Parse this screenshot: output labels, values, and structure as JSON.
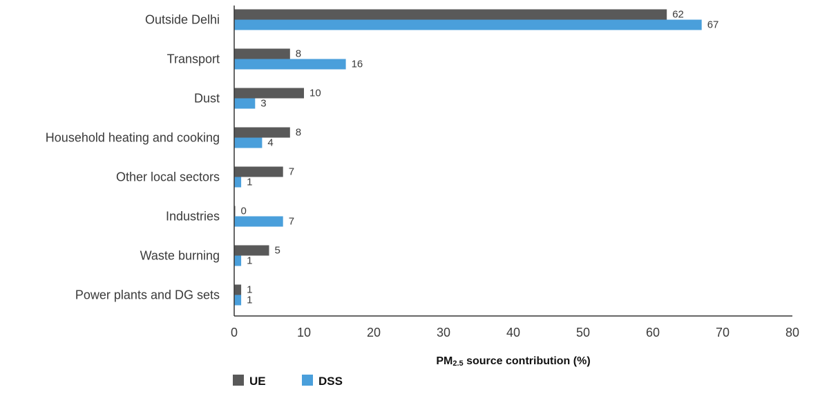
{
  "chart_data": {
    "type": "bar",
    "orientation": "horizontal",
    "categories": [
      "Outside Delhi",
      "Transport",
      "Dust",
      "Household heating and cooking",
      "Other local sectors",
      "Industries",
      "Waste burning",
      "Power plants and DG sets"
    ],
    "series": [
      {
        "name": "UE",
        "color": "#595959",
        "values": [
          62,
          8,
          10,
          8,
          7,
          0,
          5,
          1
        ]
      },
      {
        "name": "DSS",
        "color": "#4a9fdb",
        "values": [
          67,
          16,
          3,
          4,
          1,
          7,
          1,
          1
        ]
      }
    ],
    "xlabel": {
      "prefix": "PM",
      "subscript": "2.5",
      "suffix": " source contribution (%)"
    },
    "ylabel": "",
    "xlim": [
      0,
      80
    ],
    "xticks": [
      "0",
      "10",
      "20",
      "30",
      "40",
      "50",
      "60",
      "70",
      "80"
    ],
    "grid": false,
    "legend_position": "bottom-left"
  }
}
